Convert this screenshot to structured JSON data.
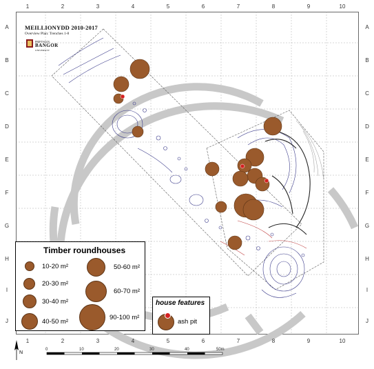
{
  "title": "MEILLIONYDD 2010-2017",
  "subtitle": "Overview Plan: Trenches 1-8",
  "logo": {
    "line1": "PRIFYSGOL",
    "name": "BANGOR",
    "line2": "UNIVERSITY"
  },
  "grid": {
    "columns": [
      "1",
      "2",
      "3",
      "4",
      "5",
      "6",
      "7",
      "8",
      "9",
      "10"
    ],
    "rows": [
      "A",
      "B",
      "C",
      "D",
      "E",
      "F",
      "G",
      "H",
      "I",
      "J"
    ]
  },
  "north_arrow": "N",
  "scale": {
    "labels": [
      "0",
      "10",
      "20",
      "30",
      "40",
      "50m"
    ]
  },
  "legend": {
    "title": "Timber roundhouses",
    "items": [
      {
        "label": "10-20 m²",
        "size": 12
      },
      {
        "label": "20-30 m²",
        "size": 15
      },
      {
        "label": "30-40 m²",
        "size": 18
      },
      {
        "label": "40-50 m²",
        "size": 22
      },
      {
        "label": "50-60 m²",
        "size": 25
      },
      {
        "label": "60-70 m²",
        "size": 29
      },
      {
        "label": "90-100 m²",
        "size": 36
      }
    ]
  },
  "house_features": {
    "title": "house features",
    "item": "ash pit"
  },
  "colors": {
    "roundhouse": "#9a5a2c",
    "ash_pit": "#d42020",
    "enclosure": "#c8c8c8",
    "features": "#3a3a8a"
  }
}
